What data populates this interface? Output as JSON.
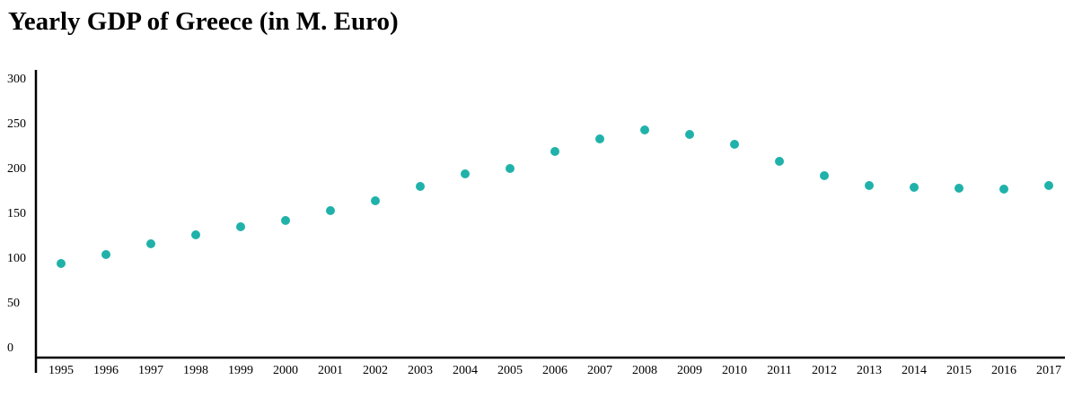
{
  "chart_data": {
    "type": "scatter",
    "title": "Yearly GDP of Greece (in M. Euro)",
    "xlabel": "",
    "ylabel": "",
    "categories": [
      "1995",
      "1996",
      "1997",
      "1998",
      "1999",
      "2000",
      "2001",
      "2002",
      "2003",
      "2004",
      "2005",
      "2006",
      "2007",
      "2008",
      "2009",
      "2010",
      "2011",
      "2012",
      "2013",
      "2014",
      "2015",
      "2016",
      "2017"
    ],
    "values": [
      93,
      103,
      115,
      125,
      134,
      141,
      152,
      163,
      179,
      193,
      199,
      218,
      232,
      242,
      237,
      226,
      207,
      191,
      180,
      178,
      177,
      176,
      180
    ],
    "ylim": [
      0,
      300
    ],
    "yticks": [
      "0",
      "50",
      "100",
      "150",
      "200",
      "250",
      "300"
    ],
    "grid": false,
    "point_color": "#20b2aa"
  }
}
